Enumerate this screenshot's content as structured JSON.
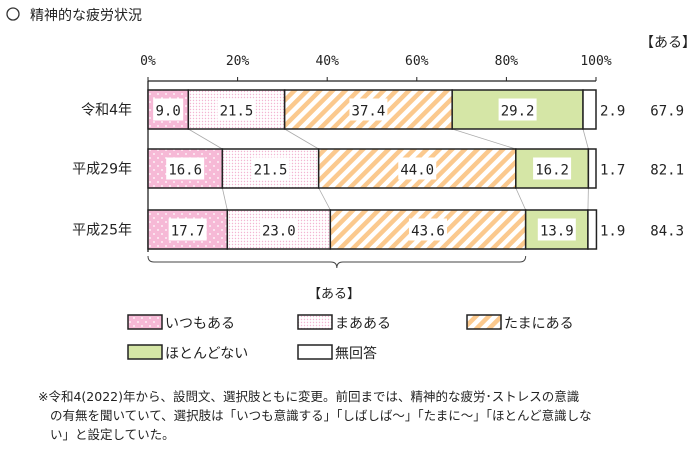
{
  "header": {
    "title": "精神的な疲労状況",
    "bullet_icon": "circle-outline-icon"
  },
  "chart_data": {
    "type": "bar",
    "orientation": "horizontal",
    "stacked": true,
    "categories": [
      "令和4年",
      "平成29年",
      "平成25年"
    ],
    "xlim": [
      0,
      100
    ],
    "x_ticks": [
      "0%",
      "20%",
      "40%",
      "60%",
      "80%",
      "100%"
    ],
    "series": [
      {
        "name": "いつもある",
        "values": [
          9.0,
          16.6,
          17.7
        ],
        "color": "#f6b9d6"
      },
      {
        "name": "まあある",
        "values": [
          21.5,
          21.5,
          23.0
        ],
        "color": "#fbe3ef"
      },
      {
        "name": "たまにある",
        "values": [
          37.4,
          44.0,
          43.6
        ],
        "color": "#fbc98e"
      },
      {
        "name": "ほとんどない",
        "values": [
          29.2,
          16.2,
          13.9
        ],
        "color": "#d5e6a6"
      },
      {
        "name": "無回答",
        "values": [
          2.9,
          1.7,
          1.9
        ],
        "color": "#ffffff"
      }
    ],
    "aru_header": "【ある】",
    "aru_totals": [
      "67.9",
      "82.1",
      "84.3"
    ],
    "brace_label": "【ある】",
    "legend_placement": "bottom",
    "grid": false
  },
  "footnote": [
    "※令和4(2022)年から、設問文、選択肢ともに変更。前回までは、精神的な疲労･ストレスの意識",
    "の有無を聞いていて、選択肢は「いつも意識する」「しばしば～」「たまに～」「ほとんど意識しな",
    "い」と設定していた。"
  ]
}
